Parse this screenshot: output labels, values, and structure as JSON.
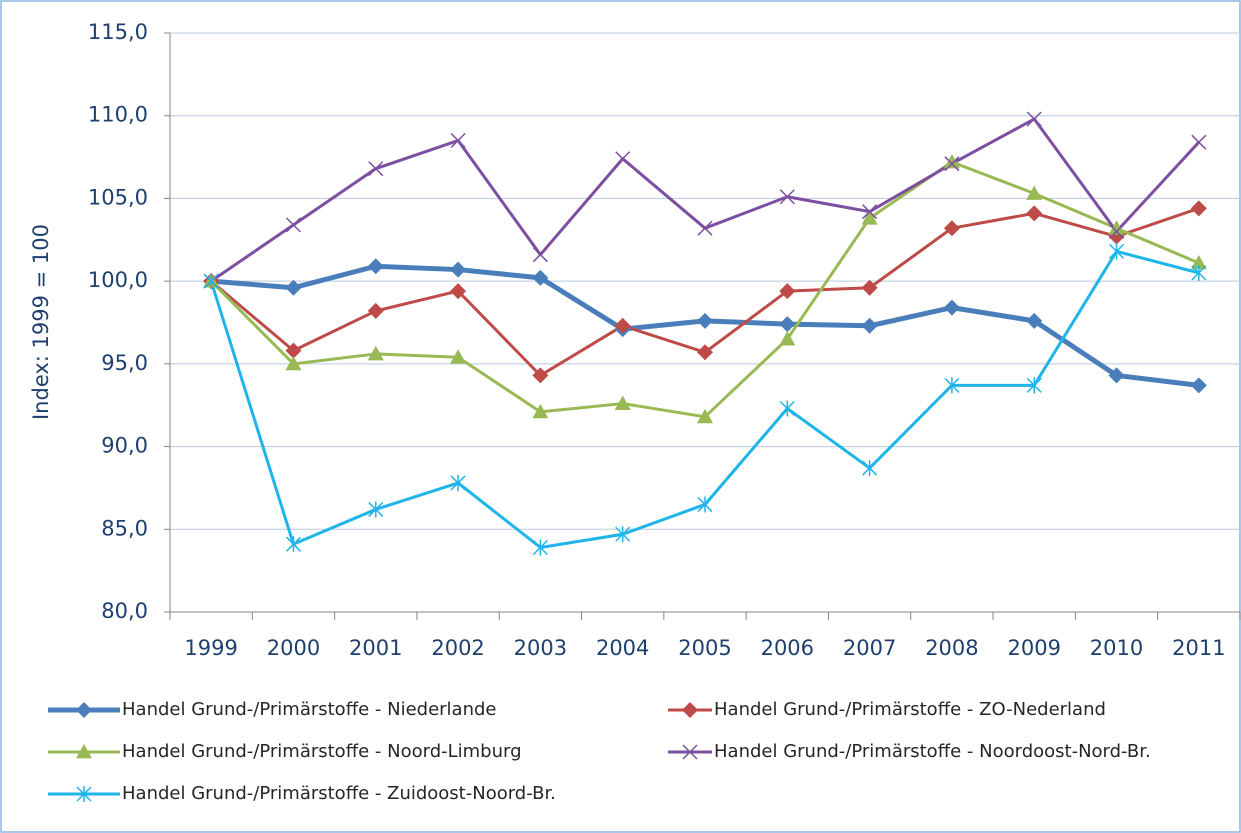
{
  "chart_data": {
    "type": "line",
    "y_label": "Index: 1999 = 100",
    "categories": [
      "1999",
      "2000",
      "2001",
      "2002",
      "2003",
      "2004",
      "2005",
      "2006",
      "2007",
      "2008",
      "2009",
      "2010",
      "2011"
    ],
    "series": [
      {
        "name": "Handel Grund-/Primärstoffe - Niederlande",
        "color": "#4a7ebb",
        "marker": "diamond",
        "width": 5,
        "values": [
          100.0,
          99.6,
          100.9,
          100.7,
          100.2,
          97.1,
          97.6,
          97.4,
          97.3,
          98.4,
          97.6,
          94.3,
          93.7
        ]
      },
      {
        "name": "Handel Grund-/Primärstoffe - ZO-Nederland",
        "color": "#be4b48",
        "marker": "diamond",
        "width": 3,
        "values": [
          100.0,
          95.8,
          98.2,
          99.4,
          94.3,
          97.3,
          95.7,
          99.4,
          99.6,
          103.2,
          104.1,
          102.7,
          104.4
        ]
      },
      {
        "name": "Handel Grund-/Primärstoffe - Noord-Limburg",
        "color": "#98b954",
        "marker": "triangle",
        "width": 3,
        "values": [
          100.0,
          95.0,
          95.6,
          95.4,
          92.1,
          92.6,
          91.8,
          96.5,
          103.8,
          107.2,
          105.3,
          103.2,
          101.1
        ]
      },
      {
        "name": "Handel Grund-/Primärstoffe - Noordoost-Nord-Br.",
        "color": "#7d4fa0",
        "marker": "x",
        "width": 3,
        "values": [
          100.0,
          103.4,
          106.8,
          108.5,
          101.6,
          107.4,
          103.2,
          105.1,
          104.2,
          107.1,
          109.8,
          103.0,
          108.4
        ]
      },
      {
        "name": "Handel Grund-/Primärstoffe - Zuidoost-Noord-Br.",
        "color": "#1fb4ea",
        "marker": "star",
        "width": 3,
        "values": [
          100.0,
          84.1,
          86.2,
          87.8,
          83.9,
          84.7,
          86.5,
          92.3,
          88.7,
          93.7,
          93.7,
          101.8,
          100.5
        ]
      }
    ],
    "ylim": [
      80,
      115
    ],
    "yticks": [
      {
        "value": 80,
        "label": "80,0"
      },
      {
        "value": 85,
        "label": "85,0"
      },
      {
        "value": 90,
        "label": "90,0"
      },
      {
        "value": 95,
        "label": "95,0"
      },
      {
        "value": 100,
        "label": "100,0"
      },
      {
        "value": 105,
        "label": "105,0"
      },
      {
        "value": 110,
        "label": "110,0"
      },
      {
        "value": 115,
        "label": "115,0"
      }
    ],
    "grid": true,
    "legend": "bottom"
  }
}
